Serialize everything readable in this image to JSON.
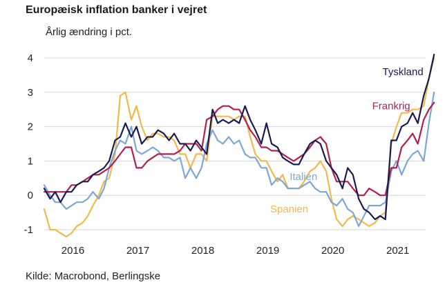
{
  "title": "Europæisk inflation banker i vejret",
  "subtitle": "Årlig ændring i pct.",
  "source": "Kilde: Macrobond, Berlingske",
  "chart_data": {
    "type": "line",
    "ylim": [
      -1.2,
      4.2
    ],
    "yticks": [
      4,
      3,
      2,
      1,
      0,
      -1
    ],
    "grid": "horizontal",
    "xlim": [
      2015.58,
      2021.45
    ],
    "xticks": [
      {
        "value": 2016.0,
        "label": "2016"
      },
      {
        "value": 2017.0,
        "label": "2017"
      },
      {
        "value": 2018.0,
        "label": "2018"
      },
      {
        "value": 2019.0,
        "label": "2019"
      },
      {
        "value": 2020.0,
        "label": "2020"
      },
      {
        "value": 2021.0,
        "label": "2021"
      }
    ],
    "series": [
      {
        "name": "Tyskland",
        "color": "#1b1a4e",
        "label_pos": [
          2021.1,
          3.5
        ],
        "points": [
          [
            2015.58,
            0.2
          ],
          [
            2015.67,
            -0.1
          ],
          [
            2015.75,
            0.1
          ],
          [
            2015.83,
            -0.2
          ],
          [
            2015.92,
            0.1
          ],
          [
            2016.0,
            0.1
          ],
          [
            2016.08,
            0.3
          ],
          [
            2016.17,
            0.4
          ],
          [
            2016.25,
            0.4
          ],
          [
            2016.33,
            0.6
          ],
          [
            2016.42,
            0.7
          ],
          [
            2016.5,
            0.8
          ],
          [
            2016.58,
            1.0
          ],
          [
            2016.67,
            1.6
          ],
          [
            2016.75,
            1.7
          ],
          [
            2016.83,
            2.1
          ],
          [
            2016.92,
            1.7
          ],
          [
            2017.0,
            2.0
          ],
          [
            2017.08,
            1.5
          ],
          [
            2017.17,
            1.7
          ],
          [
            2017.25,
            1.7
          ],
          [
            2017.33,
            1.9
          ],
          [
            2017.42,
            1.8
          ],
          [
            2017.5,
            1.6
          ],
          [
            2017.58,
            1.8
          ],
          [
            2017.67,
            1.5
          ],
          [
            2017.75,
            1.5
          ],
          [
            2017.83,
            1.3
          ],
          [
            2017.92,
            1.6
          ],
          [
            2018.0,
            1.4
          ],
          [
            2018.08,
            1.2
          ],
          [
            2018.17,
            2.5
          ],
          [
            2018.25,
            2.1
          ],
          [
            2018.33,
            2.2
          ],
          [
            2018.42,
            2.1
          ],
          [
            2018.5,
            2.2
          ],
          [
            2018.58,
            2.1
          ],
          [
            2018.67,
            2.6
          ],
          [
            2018.75,
            2.2
          ],
          [
            2018.83,
            1.9
          ],
          [
            2018.92,
            1.5
          ],
          [
            2019.0,
            2.1
          ],
          [
            2019.08,
            1.5
          ],
          [
            2019.17,
            1.4
          ],
          [
            2019.25,
            1.1
          ],
          [
            2019.33,
            1.0
          ],
          [
            2019.42,
            0.9
          ],
          [
            2019.5,
            0.9
          ],
          [
            2019.58,
            1.2
          ],
          [
            2019.67,
            1.5
          ],
          [
            2019.75,
            1.6
          ],
          [
            2019.83,
            1.5
          ],
          [
            2019.92,
            1.0
          ],
          [
            2020.0,
            0.8
          ],
          [
            2020.08,
            0.6
          ],
          [
            2020.17,
            0.2
          ],
          [
            2020.25,
            0.8
          ],
          [
            2020.33,
            0.6
          ],
          [
            2020.42,
            -0.1
          ],
          [
            2020.5,
            -0.4
          ],
          [
            2020.58,
            -0.5
          ],
          [
            2020.67,
            -0.7
          ],
          [
            2020.75,
            -0.6
          ],
          [
            2020.83,
            -0.7
          ],
          [
            2020.92,
            1.6
          ],
          [
            2021.0,
            1.6
          ],
          [
            2021.08,
            2.0
          ],
          [
            2021.17,
            2.1
          ],
          [
            2021.25,
            2.4
          ],
          [
            2021.33,
            2.1
          ],
          [
            2021.42,
            2.9
          ],
          [
            2021.5,
            3.4
          ],
          [
            2021.58,
            4.1
          ]
        ]
      },
      {
        "name": "Frankrig",
        "color": "#b11f4b",
        "label_pos": [
          2020.92,
          2.5
        ],
        "points": [
          [
            2015.58,
            0.1
          ],
          [
            2015.67,
            0.1
          ],
          [
            2015.75,
            0.1
          ],
          [
            2015.83,
            0.1
          ],
          [
            2015.92,
            0.1
          ],
          [
            2016.0,
            0.3
          ],
          [
            2016.08,
            0.3
          ],
          [
            2016.17,
            0.4
          ],
          [
            2016.25,
            0.5
          ],
          [
            2016.33,
            0.6
          ],
          [
            2016.42,
            0.6
          ],
          [
            2016.5,
            0.7
          ],
          [
            2016.58,
            0.8
          ],
          [
            2016.67,
            1.0
          ],
          [
            2016.75,
            1.2
          ],
          [
            2016.83,
            1.4
          ],
          [
            2016.92,
            1.4
          ],
          [
            2017.0,
            0.8
          ],
          [
            2017.08,
            0.8
          ],
          [
            2017.17,
            1.0
          ],
          [
            2017.25,
            1.1
          ],
          [
            2017.33,
            1.2
          ],
          [
            2017.42,
            1.2
          ],
          [
            2017.5,
            1.2
          ],
          [
            2017.58,
            1.2
          ],
          [
            2017.67,
            1.3
          ],
          [
            2017.75,
            1.5
          ],
          [
            2017.83,
            1.5
          ],
          [
            2017.92,
            1.5
          ],
          [
            2018.0,
            1.3
          ],
          [
            2018.08,
            2.2
          ],
          [
            2018.17,
            2.3
          ],
          [
            2018.25,
            2.5
          ],
          [
            2018.33,
            2.6
          ],
          [
            2018.42,
            2.6
          ],
          [
            2018.5,
            2.5
          ],
          [
            2018.58,
            2.5
          ],
          [
            2018.67,
            2.2
          ],
          [
            2018.75,
            1.9
          ],
          [
            2018.83,
            1.7
          ],
          [
            2018.92,
            1.4
          ],
          [
            2019.0,
            1.4
          ],
          [
            2019.08,
            1.3
          ],
          [
            2019.17,
            1.3
          ],
          [
            2019.25,
            1.2
          ],
          [
            2019.33,
            1.1
          ],
          [
            2019.42,
            1.0
          ],
          [
            2019.5,
            1.1
          ],
          [
            2019.58,
            1.2
          ],
          [
            2019.67,
            1.4
          ],
          [
            2019.75,
            1.6
          ],
          [
            2019.83,
            1.7
          ],
          [
            2019.92,
            1.5
          ],
          [
            2020.0,
            0.8
          ],
          [
            2020.08,
            0.4
          ],
          [
            2020.17,
            0.4
          ],
          [
            2020.25,
            0.4
          ],
          [
            2020.33,
            0.2
          ],
          [
            2020.42,
            0.0
          ],
          [
            2020.5,
            0.0
          ],
          [
            2020.58,
            0.2
          ],
          [
            2020.67,
            0.1
          ],
          [
            2020.75,
            0.0
          ],
          [
            2020.83,
            0.0
          ],
          [
            2020.92,
            0.8
          ],
          [
            2021.0,
            0.8
          ],
          [
            2021.08,
            1.4
          ],
          [
            2021.17,
            1.6
          ],
          [
            2021.25,
            1.8
          ],
          [
            2021.33,
            1.5
          ],
          [
            2021.42,
            2.2
          ],
          [
            2021.5,
            2.5
          ],
          [
            2021.58,
            2.7
          ]
        ]
      },
      {
        "name": "Italien",
        "color": "#7ba7d8",
        "label_pos": [
          2019.57,
          0.45
        ],
        "points": [
          [
            2015.58,
            0.3
          ],
          [
            2015.67,
            0.0
          ],
          [
            2015.75,
            -0.2
          ],
          [
            2015.83,
            -0.2
          ],
          [
            2015.92,
            -0.4
          ],
          [
            2016.0,
            -0.3
          ],
          [
            2016.08,
            -0.2
          ],
          [
            2016.17,
            -0.2
          ],
          [
            2016.25,
            -0.1
          ],
          [
            2016.33,
            0.1
          ],
          [
            2016.42,
            -0.1
          ],
          [
            2016.5,
            0.2
          ],
          [
            2016.58,
            0.8
          ],
          [
            2016.67,
            1.3
          ],
          [
            2016.75,
            1.6
          ],
          [
            2016.83,
            1.5
          ],
          [
            2016.92,
            2.0
          ],
          [
            2017.0,
            1.3
          ],
          [
            2017.08,
            1.2
          ],
          [
            2017.17,
            1.3
          ],
          [
            2017.25,
            1.4
          ],
          [
            2017.33,
            1.3
          ],
          [
            2017.42,
            1.1
          ],
          [
            2017.5,
            1.1
          ],
          [
            2017.58,
            1.0
          ],
          [
            2017.67,
            1.1
          ],
          [
            2017.75,
            0.5
          ],
          [
            2017.83,
            0.8
          ],
          [
            2017.92,
            0.5
          ],
          [
            2018.0,
            0.8
          ],
          [
            2018.08,
            1.5
          ],
          [
            2018.17,
            1.9
          ],
          [
            2018.25,
            1.6
          ],
          [
            2018.33,
            1.5
          ],
          [
            2018.42,
            1.7
          ],
          [
            2018.5,
            1.5
          ],
          [
            2018.58,
            1.6
          ],
          [
            2018.67,
            1.2
          ],
          [
            2018.75,
            1.1
          ],
          [
            2018.83,
            1.1
          ],
          [
            2018.92,
            0.8
          ],
          [
            2019.0,
            0.8
          ],
          [
            2019.08,
            0.3
          ],
          [
            2019.17,
            0.5
          ],
          [
            2019.25,
            0.4
          ],
          [
            2019.33,
            0.2
          ],
          [
            2019.42,
            0.2
          ],
          [
            2019.5,
            0.2
          ],
          [
            2019.58,
            0.3
          ],
          [
            2019.67,
            0.4
          ],
          [
            2019.75,
            0.2
          ],
          [
            2019.83,
            0.1
          ],
          [
            2019.92,
            0.1
          ],
          [
            2020.0,
            -0.2
          ],
          [
            2020.08,
            -0.3
          ],
          [
            2020.17,
            -0.1
          ],
          [
            2020.25,
            -0.4
          ],
          [
            2020.33,
            -0.5
          ],
          [
            2020.42,
            -0.9
          ],
          [
            2020.5,
            -0.6
          ],
          [
            2020.58,
            -0.3
          ],
          [
            2020.67,
            -0.3
          ],
          [
            2020.75,
            -0.3
          ],
          [
            2020.83,
            -0.2
          ],
          [
            2020.92,
            0.7
          ],
          [
            2021.0,
            1.0
          ],
          [
            2021.08,
            0.6
          ],
          [
            2021.17,
            1.0
          ],
          [
            2021.25,
            1.2
          ],
          [
            2021.33,
            1.3
          ],
          [
            2021.42,
            1.0
          ],
          [
            2021.5,
            2.1
          ],
          [
            2021.58,
            3.0
          ]
        ]
      },
      {
        "name": "Spanien",
        "color": "#f2b84a",
        "label_pos": [
          2019.35,
          -0.5
        ],
        "points": [
          [
            2015.58,
            -0.4
          ],
          [
            2015.67,
            -1.0
          ],
          [
            2015.75,
            -1.0
          ],
          [
            2015.83,
            -1.1
          ],
          [
            2015.92,
            -1.2
          ],
          [
            2016.0,
            -1.1
          ],
          [
            2016.08,
            -0.9
          ],
          [
            2016.17,
            -0.8
          ],
          [
            2016.25,
            -0.6
          ],
          [
            2016.33,
            -0.3
          ],
          [
            2016.42,
            0.0
          ],
          [
            2016.5,
            0.4
          ],
          [
            2016.58,
            0.5
          ],
          [
            2016.67,
            1.2
          ],
          [
            2016.75,
            2.9
          ],
          [
            2016.83,
            3.0
          ],
          [
            2016.92,
            2.2
          ],
          [
            2017.0,
            2.6
          ],
          [
            2017.08,
            2.0
          ],
          [
            2017.17,
            1.6
          ],
          [
            2017.25,
            1.8
          ],
          [
            2017.33,
            1.8
          ],
          [
            2017.42,
            1.7
          ],
          [
            2017.5,
            1.7
          ],
          [
            2017.58,
            1.6
          ],
          [
            2017.67,
            1.2
          ],
          [
            2017.75,
            1.2
          ],
          [
            2017.83,
            0.8
          ],
          [
            2017.92,
            1.2
          ],
          [
            2018.0,
            1.2
          ],
          [
            2018.08,
            1.0
          ],
          [
            2018.17,
            2.3
          ],
          [
            2018.25,
            2.3
          ],
          [
            2018.33,
            2.3
          ],
          [
            2018.42,
            2.3
          ],
          [
            2018.5,
            2.2
          ],
          [
            2018.58,
            2.3
          ],
          [
            2018.67,
            2.3
          ],
          [
            2018.75,
            1.7
          ],
          [
            2018.83,
            1.2
          ],
          [
            2018.92,
            1.0
          ],
          [
            2019.0,
            1.0
          ],
          [
            2019.08,
            0.7
          ],
          [
            2019.17,
            0.4
          ],
          [
            2019.25,
            0.6
          ],
          [
            2019.33,
            0.2
          ],
          [
            2019.42,
            0.2
          ],
          [
            2019.5,
            0.2
          ],
          [
            2019.58,
            0.4
          ],
          [
            2019.67,
            0.7
          ],
          [
            2019.75,
            0.8
          ],
          [
            2019.83,
            1.0
          ],
          [
            2019.92,
            0.7
          ],
          [
            2020.0,
            -0.1
          ],
          [
            2020.08,
            -0.7
          ],
          [
            2020.17,
            -0.9
          ],
          [
            2020.25,
            -0.7
          ],
          [
            2020.33,
            -0.6
          ],
          [
            2020.42,
            -0.7
          ],
          [
            2020.5,
            -0.8
          ],
          [
            2020.58,
            -0.9
          ],
          [
            2020.67,
            -0.8
          ],
          [
            2020.75,
            -0.6
          ],
          [
            2020.83,
            -0.5
          ],
          [
            2020.92,
            1.5
          ],
          [
            2021.0,
            2.0
          ],
          [
            2021.08,
            2.4
          ],
          [
            2021.17,
            2.4
          ],
          [
            2021.25,
            2.5
          ],
          [
            2021.33,
            2.5
          ],
          [
            2021.42,
            2.6
          ],
          [
            2021.5,
            3.4
          ],
          [
            2021.58,
            4.0
          ]
        ]
      }
    ]
  }
}
